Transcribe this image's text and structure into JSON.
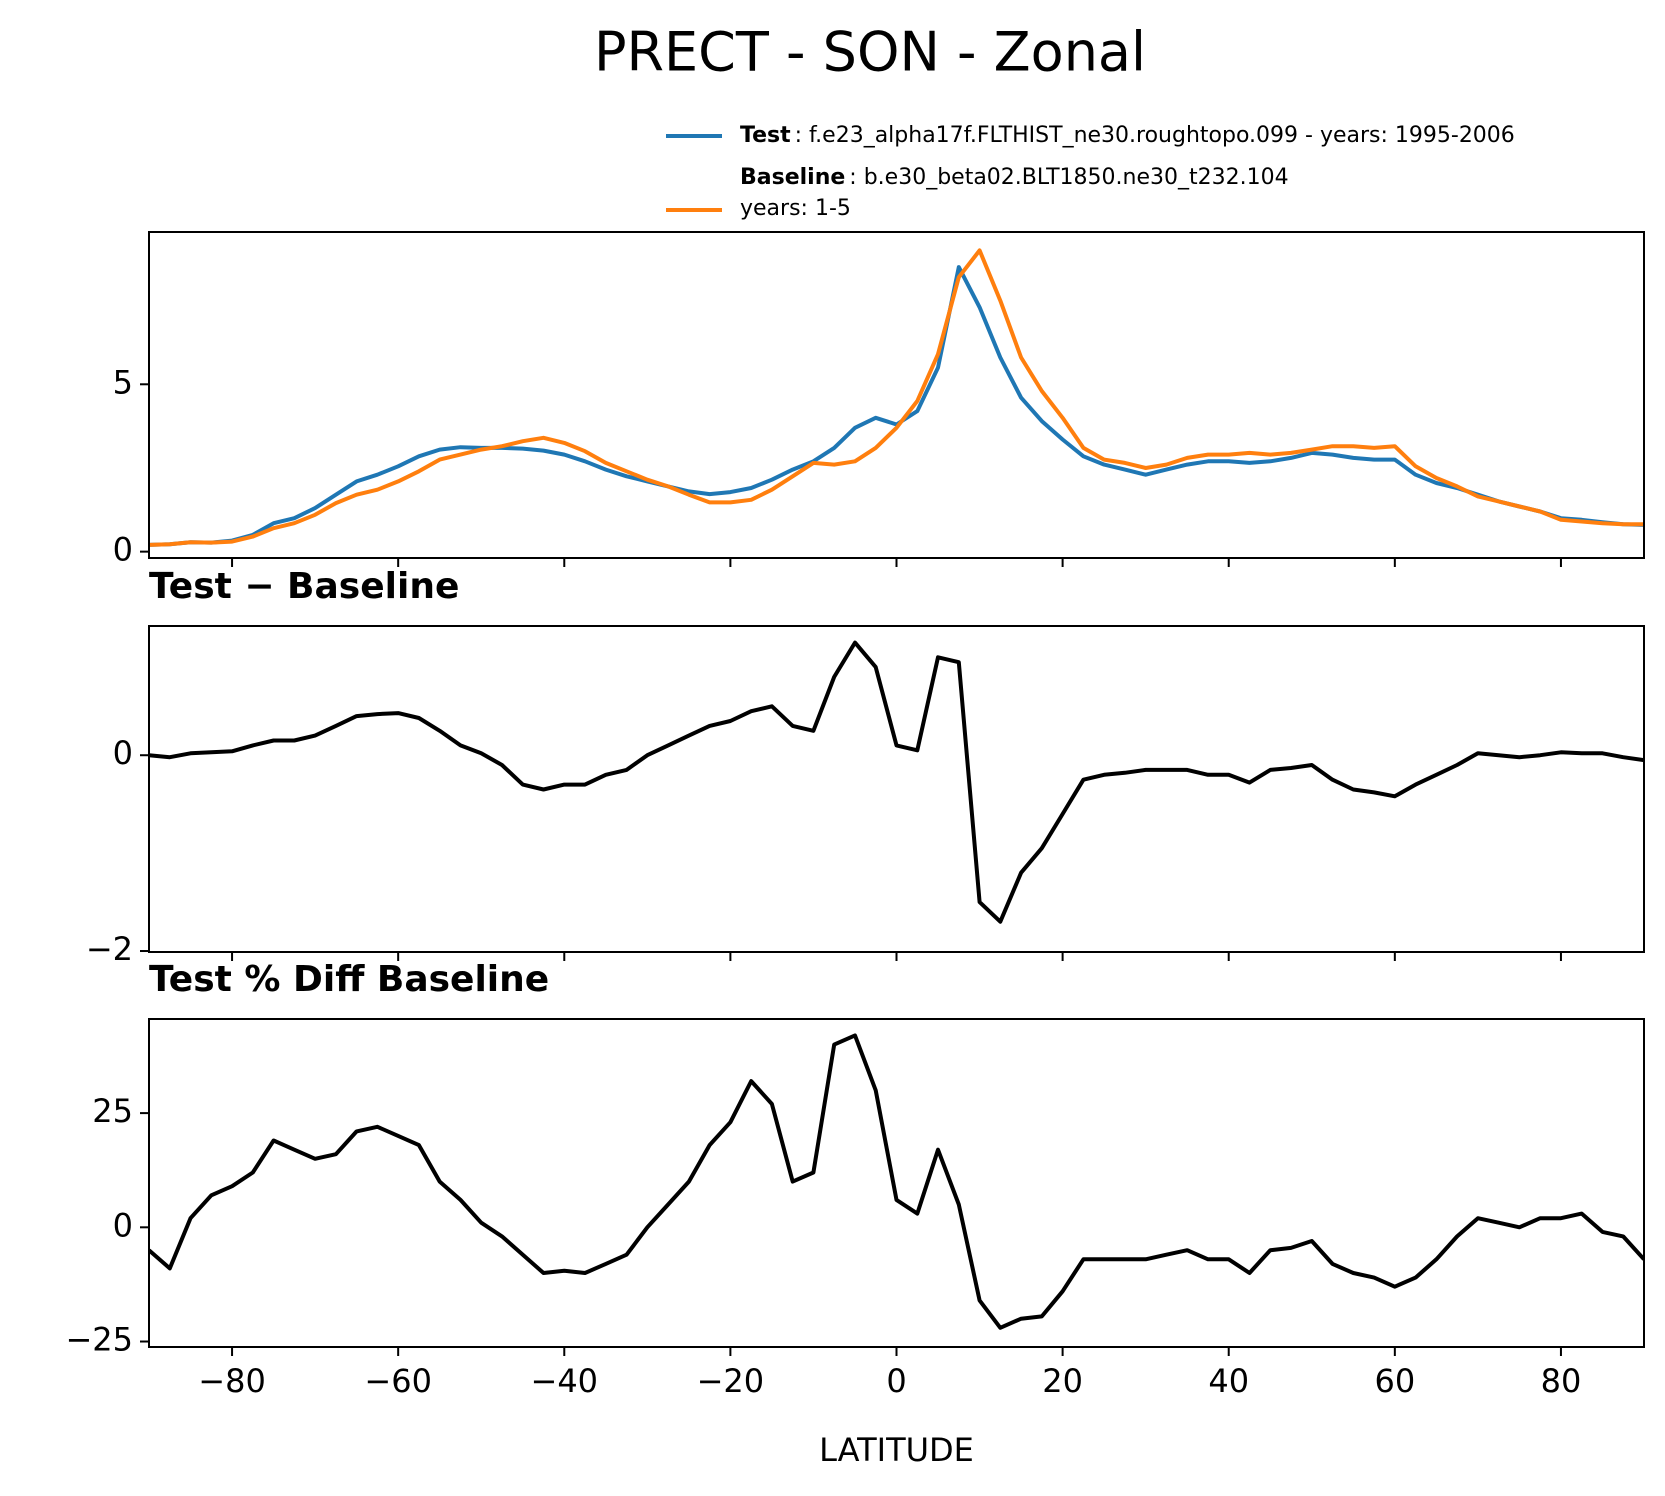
{
  "title": "PRECT - SON - Zonal",
  "chart_data": [
    {
      "type": "line",
      "x": [
        -90,
        -87.5,
        -85,
        -82.5,
        -80,
        -77.5,
        -75,
        -72.5,
        -70,
        -67.5,
        -65,
        -62.5,
        -60,
        -57.5,
        -55,
        -52.5,
        -50,
        -47.5,
        -45,
        -42.5,
        -40,
        -37.5,
        -35,
        -32.5,
        -30,
        -27.5,
        -25,
        -22.5,
        -20,
        -17.5,
        -15,
        -12.5,
        -10,
        -7.5,
        -5,
        -2.5,
        0,
        2.5,
        5,
        7.5,
        10,
        12.5,
        15,
        17.5,
        20,
        22.5,
        25,
        27.5,
        30,
        32.5,
        35,
        37.5,
        40,
        42.5,
        45,
        47.5,
        50,
        52.5,
        55,
        57.5,
        60,
        62.5,
        65,
        67.5,
        70,
        72.5,
        75,
        77.5,
        80,
        82.5,
        85,
        87.5,
        90
      ],
      "series": [
        {
          "name": "Test",
          "description": [
            ": f.e23_alpha17f.FLTHIST_ne30.roughtopo.099 - years: 1995-2006"
          ],
          "color": "#1f77b4",
          "values": [
            0.2,
            0.22,
            0.28,
            0.27,
            0.33,
            0.5,
            0.85,
            1.0,
            1.3,
            1.7,
            2.1,
            2.3,
            2.55,
            2.85,
            3.05,
            3.12,
            3.1,
            3.1,
            3.08,
            3.02,
            2.9,
            2.7,
            2.45,
            2.25,
            2.1,
            1.95,
            1.8,
            1.72,
            1.78,
            1.9,
            2.15,
            2.45,
            2.7,
            3.1,
            3.7,
            4.0,
            3.8,
            4.2,
            5.5,
            8.5,
            7.3,
            5.8,
            4.6,
            3.9,
            3.35,
            2.85,
            2.6,
            2.45,
            2.3,
            2.45,
            2.6,
            2.7,
            2.7,
            2.65,
            2.7,
            2.8,
            2.95,
            2.9,
            2.8,
            2.75,
            2.75,
            2.3,
            2.05,
            1.9,
            1.7,
            1.5,
            1.35,
            1.2,
            1.0,
            0.95,
            0.88,
            0.82,
            0.8
          ]
        },
        {
          "name": "Baseline",
          "description": [
            ": b.e30_beta02.BLT1850.ne30_t232.104",
            "years: 1-5"
          ],
          "color": "#ff7f0e",
          "values": [
            0.2,
            0.22,
            0.28,
            0.27,
            0.3,
            0.45,
            0.7,
            0.85,
            1.1,
            1.45,
            1.7,
            1.85,
            2.1,
            2.4,
            2.75,
            2.9,
            3.05,
            3.15,
            3.3,
            3.4,
            3.25,
            3.0,
            2.65,
            2.4,
            2.15,
            1.95,
            1.7,
            1.47,
            1.47,
            1.55,
            1.85,
            2.25,
            2.65,
            2.6,
            2.7,
            3.1,
            3.7,
            4.5,
            5.9,
            8.2,
            9.0,
            7.5,
            5.8,
            4.8,
            4.0,
            3.1,
            2.75,
            2.65,
            2.5,
            2.6,
            2.8,
            2.9,
            2.9,
            2.95,
            2.9,
            2.95,
            3.05,
            3.15,
            3.15,
            3.1,
            3.15,
            2.55,
            2.2,
            1.95,
            1.65,
            1.5,
            1.35,
            1.2,
            0.95,
            0.9,
            0.85,
            0.82,
            0.82
          ]
        }
      ],
      "xlim": [
        -90,
        90
      ],
      "xticks": [
        -80,
        -60,
        -40,
        -20,
        0,
        20,
        40,
        60,
        80
      ],
      "ylim": [
        -0.19,
        9.55
      ],
      "yticks": [
        0,
        5
      ]
    },
    {
      "type": "line",
      "title": "Test − Baseline",
      "x": [
        -90,
        -87.5,
        -85,
        -82.5,
        -80,
        -77.5,
        -75,
        -72.5,
        -70,
        -67.5,
        -65,
        -62.5,
        -60,
        -57.5,
        -55,
        -52.5,
        -50,
        -47.5,
        -45,
        -42.5,
        -40,
        -37.5,
        -35,
        -32.5,
        -30,
        -27.5,
        -25,
        -22.5,
        -20,
        -17.5,
        -15,
        -12.5,
        -10,
        -7.5,
        -5,
        -2.5,
        0,
        2.5,
        5,
        7.5,
        10,
        12.5,
        15,
        17.5,
        20,
        22.5,
        25,
        27.5,
        30,
        32.5,
        35,
        37.5,
        40,
        42.5,
        45,
        47.5,
        50,
        52.5,
        55,
        57.5,
        60,
        62.5,
        65,
        67.5,
        70,
        72.5,
        75,
        77.5,
        80,
        82.5,
        85,
        87.5,
        90
      ],
      "series": [
        {
          "color": "#000000",
          "values": [
            0,
            -0.02,
            0.02,
            0.03,
            0.04,
            0.1,
            0.15,
            0.15,
            0.2,
            0.3,
            0.4,
            0.42,
            0.43,
            0.38,
            0.25,
            0.1,
            0.02,
            -0.1,
            -0.3,
            -0.35,
            -0.3,
            -0.3,
            -0.2,
            -0.15,
            0,
            0.1,
            0.2,
            0.3,
            0.35,
            0.45,
            0.5,
            0.3,
            0.25,
            0.8,
            1.15,
            0.9,
            0.1,
            0.05,
            1.0,
            0.95,
            -1.5,
            -1.7,
            -1.2,
            -0.95,
            -0.6,
            -0.25,
            -0.2,
            -0.18,
            -0.15,
            -0.15,
            -0.15,
            -0.2,
            -0.2,
            -0.28,
            -0.15,
            -0.13,
            -0.1,
            -0.25,
            -0.35,
            -0.38,
            -0.42,
            -0.3,
            -0.2,
            -0.1,
            0.02,
            0,
            -0.02,
            0,
            0.03,
            0.02,
            0.02,
            -0.02,
            -0.05
          ]
        }
      ],
      "xlim": [
        -90,
        90
      ],
      "xticks": [
        -80,
        -60,
        -40,
        -20,
        0,
        20,
        40,
        60,
        80
      ],
      "ylim": [
        -2.01,
        1.32
      ],
      "yticks": [
        {
          "value": -2,
          "label": "−2"
        },
        0
      ]
    },
    {
      "type": "line",
      "title": "Test % Diff Baseline",
      "xlabel": "LATITUDE",
      "x": [
        -90,
        -87.5,
        -85,
        -82.5,
        -80,
        -77.5,
        -75,
        -72.5,
        -70,
        -67.5,
        -65,
        -62.5,
        -60,
        -57.5,
        -55,
        -52.5,
        -50,
        -47.5,
        -45,
        -42.5,
        -40,
        -37.5,
        -35,
        -32.5,
        -30,
        -27.5,
        -25,
        -22.5,
        -20,
        -17.5,
        -15,
        -12.5,
        -10,
        -7.5,
        -5,
        -2.5,
        0,
        2.5,
        5,
        7.5,
        10,
        12.5,
        15,
        17.5,
        20,
        22.5,
        25,
        27.5,
        30,
        32.5,
        35,
        37.5,
        40,
        42.5,
        45,
        47.5,
        50,
        52.5,
        55,
        57.5,
        60,
        62.5,
        65,
        67.5,
        70,
        72.5,
        75,
        77.5,
        80,
        82.5,
        85,
        87.5,
        90
      ],
      "series": [
        {
          "color": "#000000",
          "values": [
            -5,
            -9,
            2,
            7,
            9,
            12,
            19,
            17,
            15,
            16,
            21,
            22,
            20,
            18,
            10,
            6,
            1,
            -2,
            -6,
            -10,
            -9.5,
            -10,
            -8,
            -6,
            0,
            5,
            10,
            18,
            23,
            32,
            27,
            10,
            12,
            40,
            42,
            30,
            6,
            3,
            17,
            5,
            -16,
            -22,
            -20,
            -19.5,
            -14,
            -7,
            -7,
            -7,
            -7,
            -6,
            -5,
            -7,
            -7,
            -10,
            -5,
            -4.5,
            -3,
            -8,
            -10,
            -11,
            -13,
            -11,
            -7,
            -2,
            2,
            1,
            0,
            2,
            2,
            3,
            -1,
            -2,
            -7
          ]
        }
      ],
      "xlim": [
        -90,
        90
      ],
      "xticks": [
        {
          "value": -80,
          "label": "−80"
        },
        {
          "value": -60,
          "label": "−60"
        },
        {
          "value": -40,
          "label": "−40"
        },
        {
          "value": -20,
          "label": "−20"
        },
        0,
        20,
        40,
        60,
        80
      ],
      "ylim": [
        -26.2,
        45.6
      ],
      "yticks": [
        {
          "value": -25,
          "label": "−25"
        },
        0,
        25
      ]
    }
  ]
}
